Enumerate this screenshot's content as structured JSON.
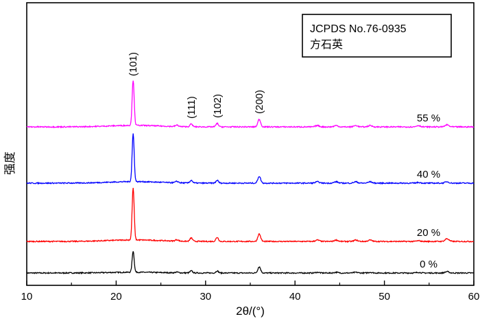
{
  "chart_data": {
    "type": "line",
    "xlabel": "2θ/(°)",
    "ylabel": "强度",
    "xlim": [
      10,
      60
    ],
    "x_ticks": [
      10,
      20,
      30,
      40,
      50,
      60
    ],
    "legend_box": {
      "line1": "JCPDS No.76-0935",
      "line2": "方石英",
      "placement": "top-right"
    },
    "peak_labels": [
      {
        "text": "(101)",
        "x": 21.9
      },
      {
        "text": "(111)",
        "x": 28.4
      },
      {
        "text": "(102)",
        "x": 31.3
      },
      {
        "text": "(200)",
        "x": 36.0
      }
    ],
    "peak_positions": [
      21.9,
      26.8,
      28.4,
      31.3,
      36.0,
      42.5,
      44.6,
      46.8,
      48.4,
      53.8,
      57.0
    ],
    "series": [
      {
        "name": "0 %",
        "color": "#000000",
        "baseline": 0,
        "peaks": [
          31,
          1,
          3,
          3,
          9,
          1,
          1,
          1,
          1,
          1,
          2
        ]
      },
      {
        "name": "20 %",
        "color": "#ff0000",
        "baseline": 46,
        "peaks": [
          76,
          2,
          5,
          6,
          11,
          2,
          2,
          2,
          2,
          1,
          4
        ]
      },
      {
        "name": "40 %",
        "color": "#0000ff",
        "baseline": 131,
        "peaks": [
          70,
          2,
          4,
          4,
          10,
          2,
          2,
          2,
          2,
          1,
          2
        ]
      },
      {
        "name": "55 %",
        "color": "#ff00ff",
        "baseline": 213,
        "peaks": [
          66,
          2,
          4,
          5,
          11,
          2,
          2,
          2,
          2,
          2,
          3
        ]
      }
    ]
  }
}
